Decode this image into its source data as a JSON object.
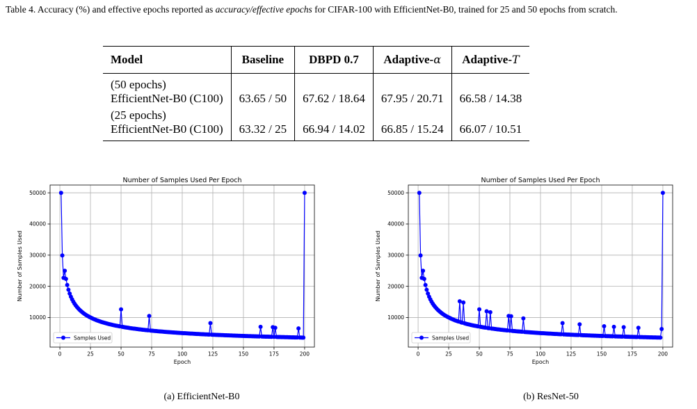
{
  "caption": {
    "prefix": "Table 4. Accuracy (%) and effective epochs reported as ",
    "italic": "accuracy/effective epochs",
    "suffix": " for CIFAR-100 with EfficientNet-B0, trained for 25 and 50 epochs from scratch."
  },
  "table": {
    "headers": {
      "model": "Model",
      "baseline": "Baseline",
      "dbpd": "DBPD 0.7",
      "adaptive_alpha_prefix": "Adaptive-",
      "adaptive_alpha_symbol": "α",
      "adaptive_t_prefix": "Adaptive-",
      "adaptive_t_symbol": "T"
    },
    "rows": [
      {
        "epochs": "(50 epochs)",
        "model": "EfficientNet-B0 (C100)",
        "baseline": "63.65 / 50",
        "dbpd": "67.62 / 18.64",
        "alpha": "67.95 / 20.71",
        "t": "66.58 / 14.38"
      },
      {
        "epochs": "(25 epochs)",
        "model": "EfficientNet-B0 (C100)",
        "baseline": "63.32 / 25",
        "dbpd": "66.94 / 14.02",
        "alpha": "66.85 / 15.24",
        "t": "66.07 / 10.51"
      }
    ]
  },
  "chart_data": [
    {
      "type": "line",
      "title": "Number of Samples Used Per Epoch",
      "xlabel": "Epoch",
      "ylabel": "Number of Samples Used",
      "xlim": [
        -8,
        208
      ],
      "ylim": [
        500,
        52500
      ],
      "xticks": [
        0,
        25,
        50,
        75,
        100,
        125,
        150,
        175,
        200
      ],
      "yticks": [
        10000,
        20000,
        30000,
        40000,
        50000
      ],
      "grid": true,
      "legend": "lower-left",
      "color": "#0000ff",
      "series": [
        {
          "name": "Samples Used",
          "spikes": [
            [
              50,
              12600
            ],
            [
              73,
              10500
            ],
            [
              123,
              8200
            ],
            [
              164,
              7000
            ],
            [
              174,
              6900
            ],
            [
              176,
              6700
            ],
            [
              195,
              6500
            ],
            [
              200,
              50000
            ]
          ]
        }
      ],
      "decay": {
        "start": 50000,
        "floor": 2600
      }
    },
    {
      "type": "line",
      "title": "Number of Samples Used Per Epoch",
      "xlabel": "Epoch",
      "ylabel": "Number of Samples Used",
      "xlim": [
        -8,
        208
      ],
      "ylim": [
        500,
        52500
      ],
      "xticks": [
        0,
        25,
        50,
        75,
        100,
        125,
        150,
        175,
        200
      ],
      "yticks": [
        10000,
        20000,
        30000,
        40000,
        50000
      ],
      "grid": true,
      "legend": "lower-left",
      "color": "#0000ff",
      "series": [
        {
          "name": "Samples Used",
          "spikes": [
            [
              34,
              15200
            ],
            [
              37,
              14800
            ],
            [
              50,
              12600
            ],
            [
              56,
              12000
            ],
            [
              59,
              11700
            ],
            [
              74,
              10500
            ],
            [
              76,
              10400
            ],
            [
              86,
              9700
            ],
            [
              118,
              8200
            ],
            [
              132,
              7800
            ],
            [
              152,
              7200
            ],
            [
              160,
              7000
            ],
            [
              168,
              6900
            ],
            [
              180,
              6700
            ],
            [
              199,
              6300
            ],
            [
              200,
              50000
            ]
          ]
        }
      ],
      "decay": {
        "start": 50000,
        "floor": 2600
      }
    }
  ],
  "subcaptions": {
    "a": "(a) EfficientNet-B0",
    "b": "(b) ResNet-50"
  }
}
